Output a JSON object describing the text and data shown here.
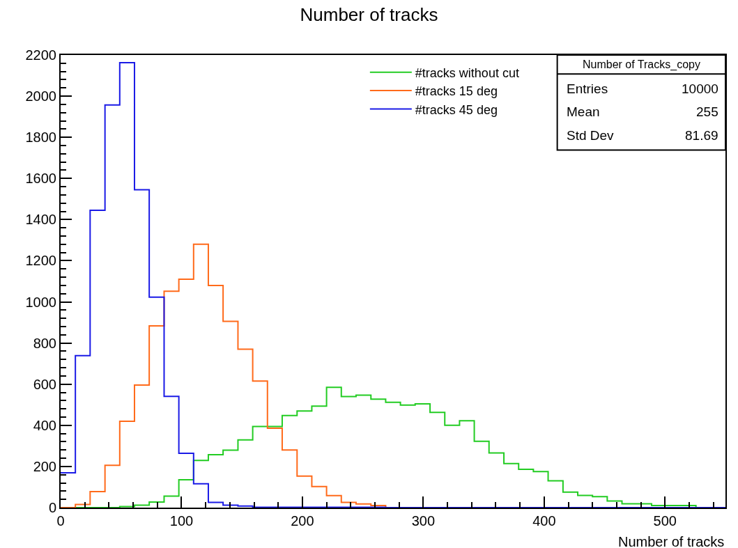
{
  "chart_data": {
    "type": "histogram",
    "title": "Number of tracks",
    "xlabel": "Number of tracks",
    "bins": [
      0,
      12.2,
      24.4,
      36.7,
      48.9,
      61.1,
      73.3,
      85.6,
      97.8,
      110,
      122.2,
      134.4,
      146.7,
      158.9,
      171.1,
      183.3,
      195.6,
      207.8,
      220,
      232.2,
      244.4,
      256.7,
      268.9,
      281.1,
      293.3,
      305.6,
      317.8,
      330,
      342.2,
      354.4,
      366.7,
      378.9,
      391.1,
      403.3,
      415.6,
      427.8,
      440,
      452.2,
      464.4,
      476.7,
      488.9,
      501.1,
      513.3,
      525.6,
      537.8,
      550
    ],
    "series": [
      {
        "name": "#tracks without cut",
        "color": "#22cc22",
        "values": [
          0,
          0,
          0,
          0,
          5,
          12,
          27,
          56,
          135,
          229,
          257,
          279,
          329,
          394,
          394,
          448,
          470,
          493,
          585,
          540,
          547,
          527,
          512,
          498,
          504,
          463,
          400,
          422,
          322,
          266,
          214,
          186,
          175,
          130,
          75,
          59,
          53,
          32,
          19,
          19,
          10,
          10,
          10,
          0,
          0
        ]
      },
      {
        "name": "#tracks 15 deg",
        "color": "#ff6a1a",
        "values": [
          0,
          15,
          78,
          206,
          420,
          596,
          883,
          1052,
          1110,
          1280,
          1080,
          905,
          770,
          615,
          386,
          280,
          153,
          102,
          58,
          25,
          18,
          10,
          0,
          0,
          0,
          0,
          0,
          0,
          0,
          0,
          0,
          0,
          0,
          0,
          0,
          0,
          0,
          0,
          0,
          0,
          0,
          0,
          0,
          0,
          0
        ]
      },
      {
        "name": "#tracks 45 deg",
        "color": "#1a1ae6",
        "values": [
          169,
          739,
          1445,
          1957,
          2163,
          1545,
          1023,
          541,
          264,
          116,
          25,
          12,
          8,
          2,
          2,
          2,
          2,
          2,
          2,
          2,
          2,
          2,
          0,
          0,
          0,
          0,
          0,
          0,
          0,
          0,
          0,
          0,
          0,
          0,
          0,
          0,
          0,
          0,
          0,
          0,
          0,
          0,
          0,
          0,
          0
        ]
      }
    ],
    "xlim": [
      0,
      550
    ],
    "xticks": [
      0,
      100,
      200,
      300,
      400,
      500
    ],
    "ylim": [
      0,
      2200
    ],
    "yticks": [
      0,
      200,
      400,
      600,
      800,
      1000,
      1200,
      1400,
      1600,
      1800,
      2000,
      2200
    ],
    "legend": "top right",
    "annotations": [
      "Number of Tracks_copy",
      "Entries",
      "10000",
      "Mean",
      "255",
      "Std Dev",
      "81.69"
    ]
  }
}
